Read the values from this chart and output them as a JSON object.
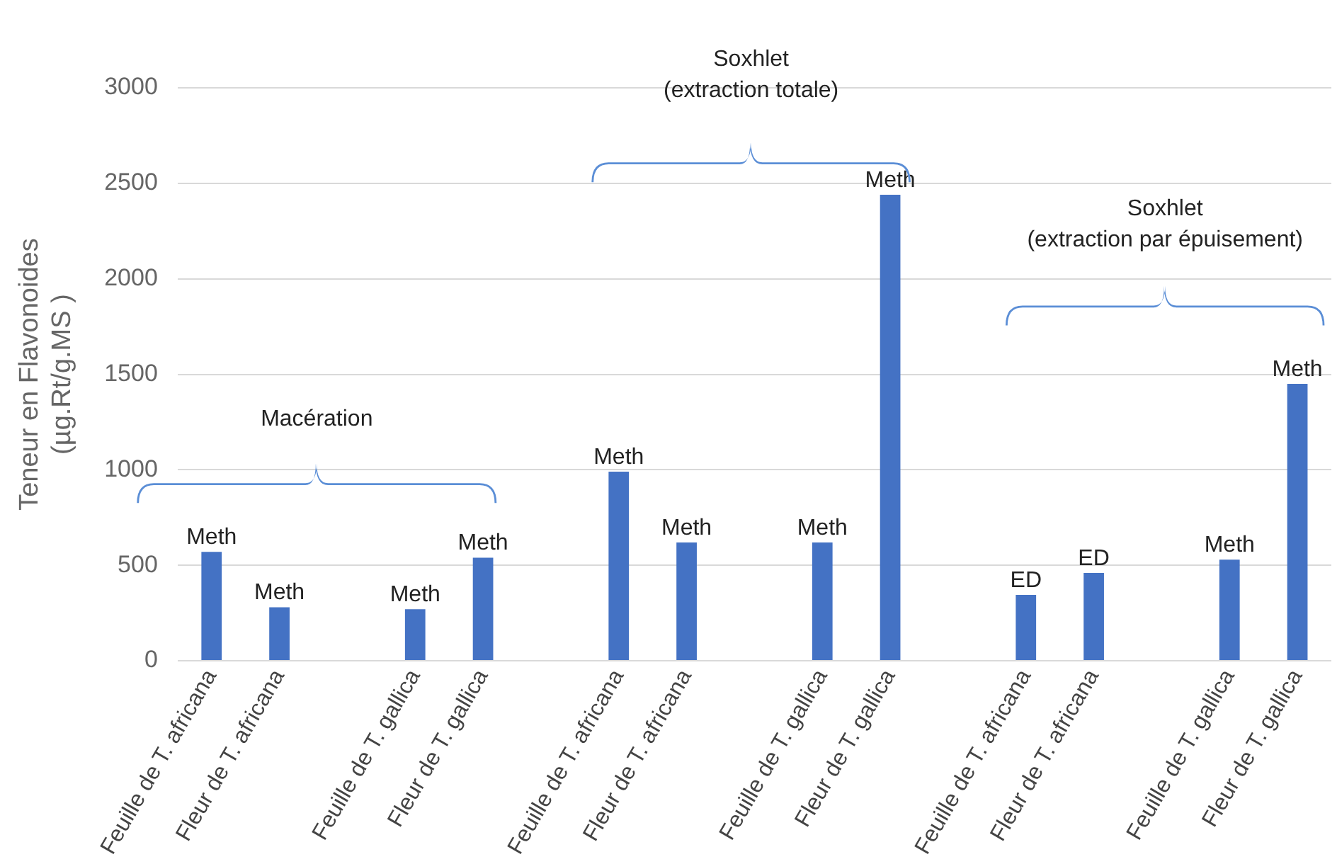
{
  "chart_data": {
    "type": "bar",
    "categories": [
      "Feuille de T. africana",
      "Fleur de T. africana",
      null,
      "Feuille de T. gallica",
      "Fleur de T. gallica",
      null,
      "Feuille de T. africana",
      "Fleur de T. africana",
      null,
      "Feuille de T. gallica",
      "Fleur de T. gallica",
      null,
      "Feuille de T. africana",
      "Fleur de T. africana",
      null,
      "Feuille de T. gallica",
      "Fleur de T. gallica"
    ],
    "values": [
      570,
      280,
      null,
      270,
      540,
      null,
      990,
      620,
      null,
      620,
      2440,
      null,
      345,
      460,
      null,
      530,
      1450
    ],
    "value_labels": [
      "Meth",
      "Meth",
      null,
      "Meth",
      "Meth",
      null,
      "Meth",
      "Meth",
      null,
      "Meth",
      "Meth",
      null,
      "ED",
      "ED",
      null,
      "Meth",
      "Meth"
    ],
    "color": "#4472c4",
    "ylabel": "Teneur en Flavonoides\n(µg.Rt/g.MS )",
    "ylim": [
      0,
      3000
    ],
    "yticks": [
      0,
      500,
      1000,
      1500,
      2000,
      2500,
      3000
    ],
    "grid": "y",
    "annotations": [
      "Macération",
      "Soxhlet\n(extraction totale)",
      "Soxhlet\n(extraction par épuisement)"
    ]
  }
}
